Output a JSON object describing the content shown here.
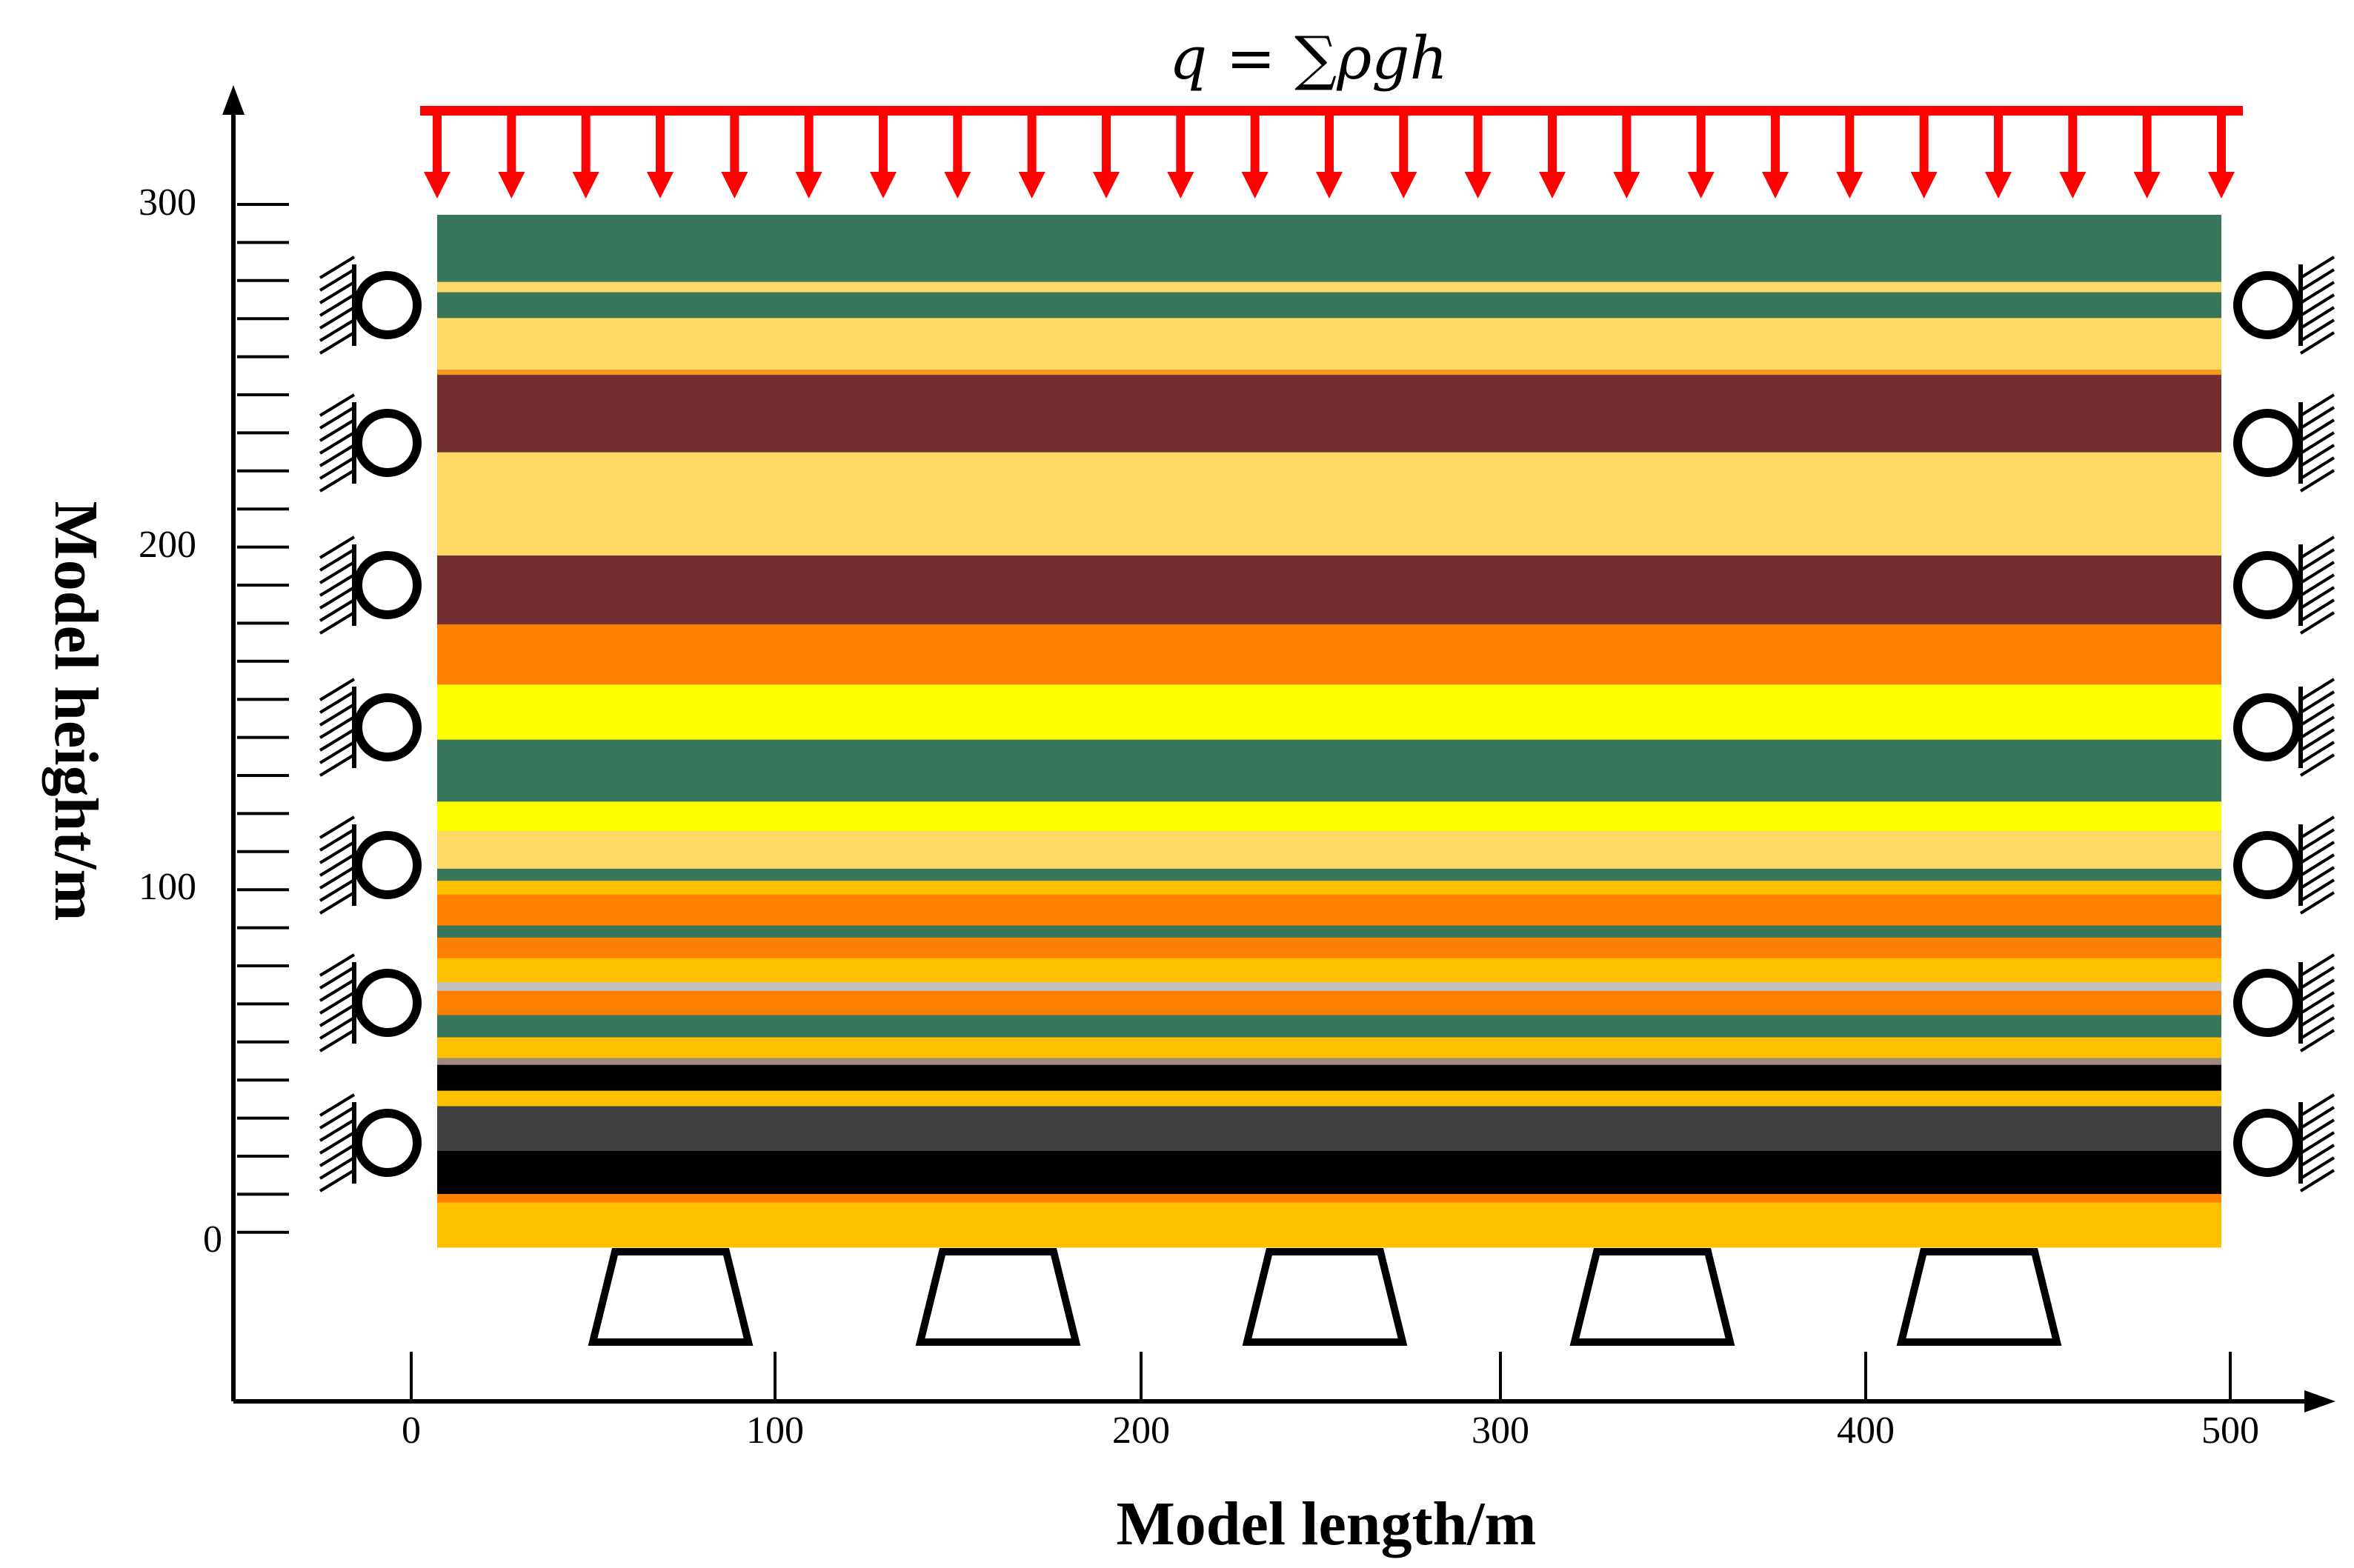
{
  "load": {
    "label": "q = ∑ρgh",
    "color": "#FF0000",
    "arrow_count": 25
  },
  "axes": {
    "x_title": "Model length/m",
    "y_title": "Model height/m",
    "x_ticks": [
      "0",
      "100",
      "200",
      "300",
      "400",
      "500"
    ],
    "y_ticks": [
      "300",
      "200",
      "100",
      "0"
    ],
    "x_range": [
      0,
      500
    ],
    "y_range": [
      0,
      300
    ]
  },
  "strata": [
    {
      "top": 300.0,
      "bottom": 280.5,
      "color": "#38775B"
    },
    {
      "top": 280.5,
      "bottom": 277.5,
      "color": "#FFD966"
    },
    {
      "top": 277.5,
      "bottom": 270.0,
      "color": "#38775B"
    },
    {
      "top": 270.0,
      "bottom": 255.0,
      "color": "#FFD966"
    },
    {
      "top": 255.0,
      "bottom": 253.5,
      "color": "#F49A1C"
    },
    {
      "top": 253.5,
      "bottom": 231.0,
      "color": "#722F31"
    },
    {
      "top": 231.0,
      "bottom": 201.0,
      "color": "#FFD966"
    },
    {
      "top": 201.0,
      "bottom": 181.0,
      "color": "#722F31"
    },
    {
      "top": 181.0,
      "bottom": 163.5,
      "color": "#FF8000"
    },
    {
      "top": 163.5,
      "bottom": 147.5,
      "color": "#FFFF00"
    },
    {
      "top": 147.5,
      "bottom": 129.5,
      "color": "#38775B"
    },
    {
      "top": 129.5,
      "bottom": 121.0,
      "color": "#FFFF00"
    },
    {
      "top": 121.0,
      "bottom": 110.0,
      "color": "#FFD966"
    },
    {
      "top": 110.0,
      "bottom": 106.5,
      "color": "#38775B"
    },
    {
      "top": 106.5,
      "bottom": 102.5,
      "color": "#FFC000"
    },
    {
      "top": 102.5,
      "bottom": 93.5,
      "color": "#FF8000"
    },
    {
      "top": 93.5,
      "bottom": 90.0,
      "color": "#38775B"
    },
    {
      "top": 90.0,
      "bottom": 84.0,
      "color": "#FF8000"
    },
    {
      "top": 84.0,
      "bottom": 77.0,
      "color": "#FFC000"
    },
    {
      "top": 77.0,
      "bottom": 74.5,
      "color": "#C0C0C0"
    },
    {
      "top": 74.5,
      "bottom": 67.5,
      "color": "#FF8000"
    },
    {
      "top": 67.5,
      "bottom": 61.0,
      "color": "#38775B"
    },
    {
      "top": 61.0,
      "bottom": 55.0,
      "color": "#FFC000"
    },
    {
      "top": 55.0,
      "bottom": 53.0,
      "color": "#9E8A7E"
    },
    {
      "top": 53.0,
      "bottom": 45.5,
      "color": "#000000"
    },
    {
      "top": 45.5,
      "bottom": 41.0,
      "color": "#FFC000"
    },
    {
      "top": 41.0,
      "bottom": 28.0,
      "color": "#404040"
    },
    {
      "top": 28.0,
      "bottom": 15.5,
      "color": "#000000"
    },
    {
      "top": 15.5,
      "bottom": 13.0,
      "color": "#FF8000"
    },
    {
      "top": 13.0,
      "bottom": 0.0,
      "color": "#FFC000"
    }
  ],
  "roller_supports": {
    "left_count": 7,
    "right_count": 7
  },
  "bottom_supports": {
    "count": 5
  }
}
